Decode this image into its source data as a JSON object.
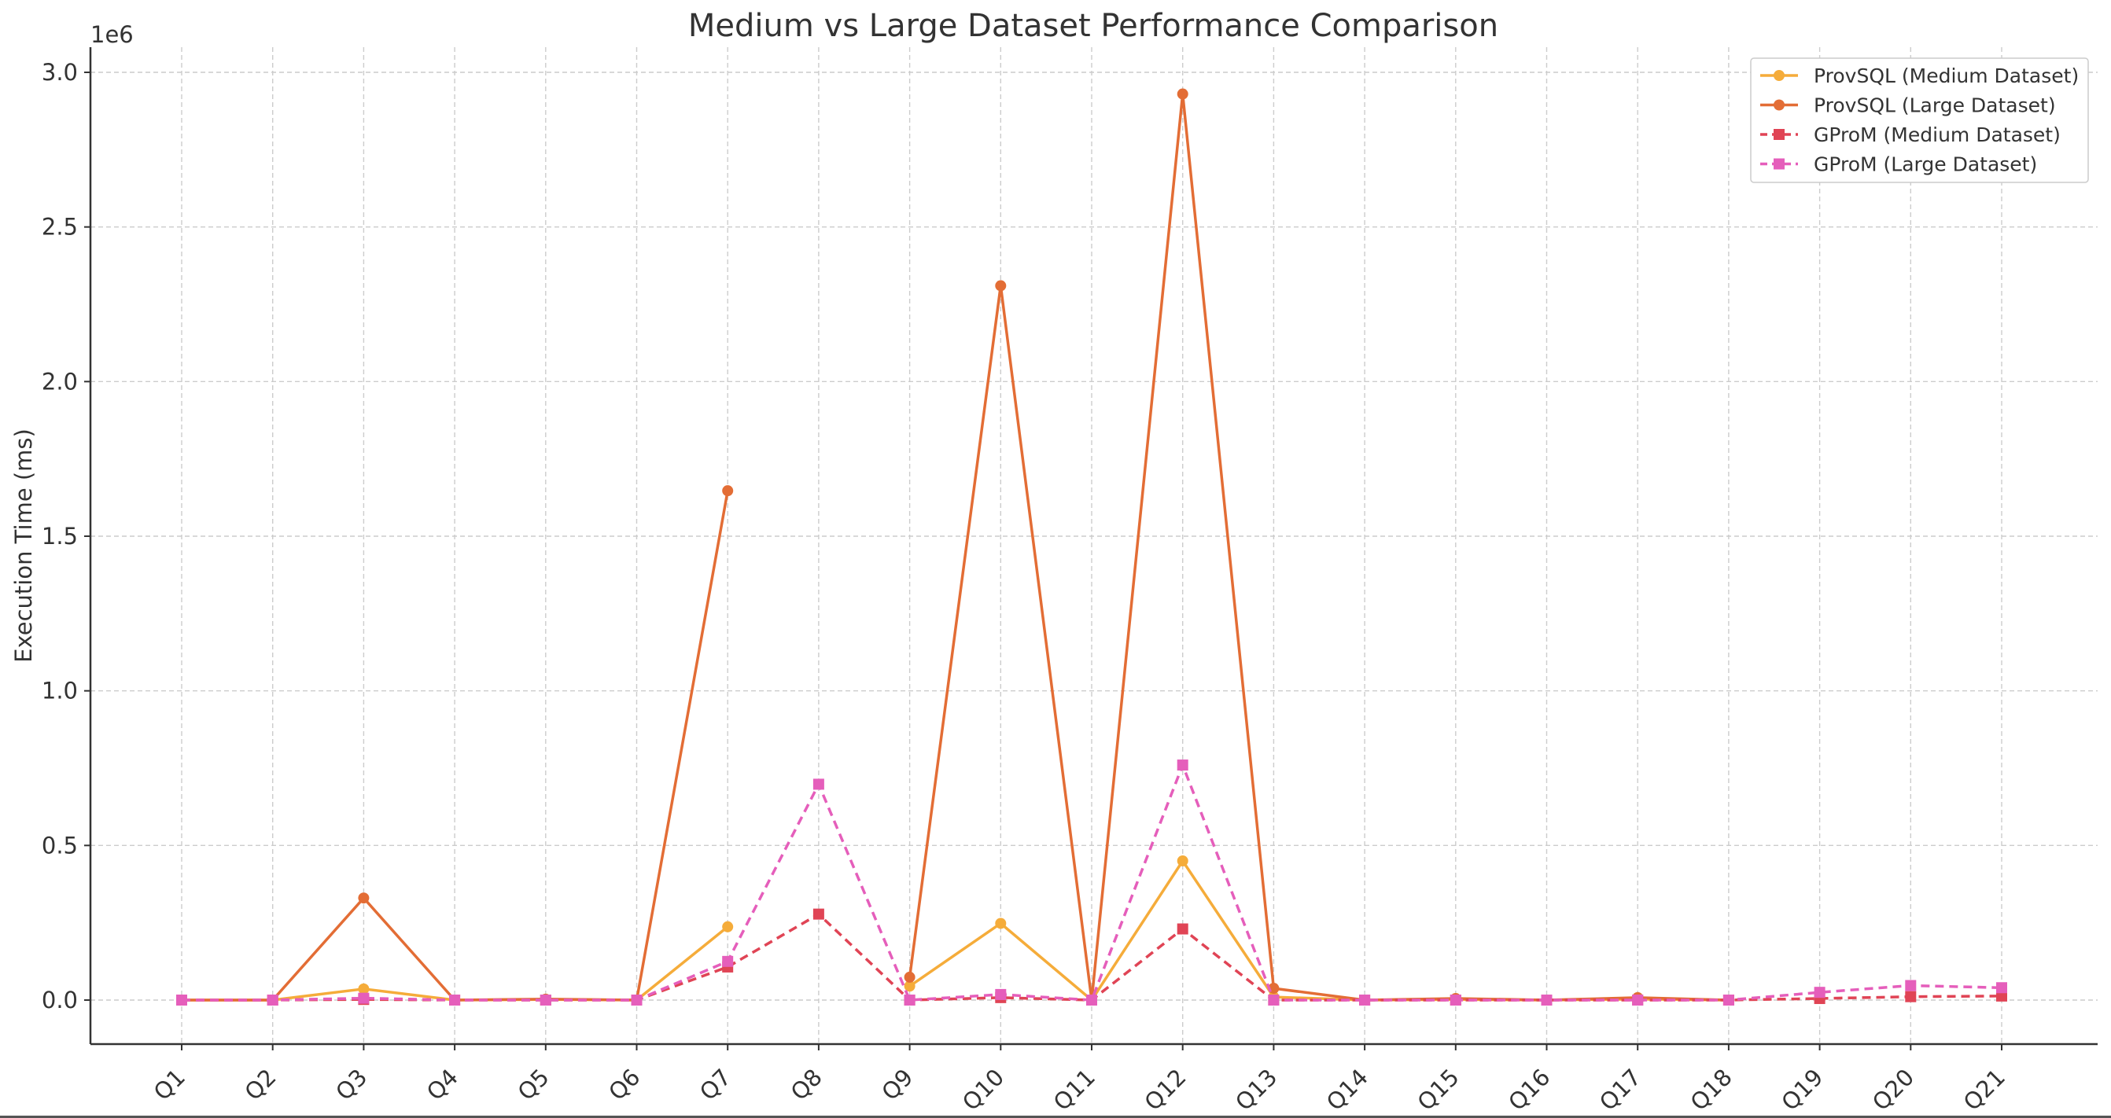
{
  "chart_data": {
    "type": "line",
    "title": "Medium vs Large Dataset Performance Comparison",
    "xlabel": "",
    "ylabel": "Execution Time (ms)",
    "y_offset_label": "1e6",
    "ylim": [
      -0.15,
      3.08
    ],
    "y_ticks": [
      0.0,
      0.5,
      1.0,
      1.5,
      2.0,
      2.5,
      3.0
    ],
    "y_tick_labels": [
      "0.0",
      "0.5",
      "1.0",
      "1.5",
      "2.0",
      "2.5",
      "3.0"
    ],
    "y_scale_note": "values in units of 1e6 ms",
    "grid": true,
    "legend_position": "top-right",
    "categories": [
      "Q1",
      "Q2",
      "Q3",
      "Q4",
      "Q5",
      "Q6",
      "Q7",
      "Q8",
      "Q9",
      "Q10",
      "Q11",
      "Q12",
      "Q13",
      "Q14",
      "Q15",
      "Q16",
      "Q17",
      "Q18",
      "Q19",
      "Q20",
      "Q21"
    ],
    "series": [
      {
        "name": "ProvSQL (Medium Dataset)",
        "color": "#f5ac3a",
        "line_style": "solid",
        "marker": "circle",
        "values": [
          0.0,
          0.0,
          0.036,
          0.0,
          0.002,
          0.0,
          0.237,
          null,
          0.045,
          0.248,
          0.0,
          0.45,
          0.01,
          0.0,
          0.002,
          0.0,
          0.003,
          0.0,
          null,
          null,
          null
        ]
      },
      {
        "name": "ProvSQL (Large Dataset)",
        "color": "#e36d35",
        "line_style": "solid",
        "marker": "circle",
        "values": [
          0.0,
          0.0,
          0.33,
          0.0,
          0.003,
          0.0,
          1.647,
          null,
          0.074,
          2.31,
          0.0,
          2.93,
          0.038,
          0.0,
          0.005,
          0.0,
          0.008,
          0.0,
          null,
          null,
          null
        ]
      },
      {
        "name": "GProM (Medium Dataset)",
        "color": "#e04455",
        "line_style": "dashed",
        "marker": "square",
        "values": [
          0.0,
          0.0,
          0.002,
          0.0,
          0.0,
          0.0,
          0.107,
          0.278,
          0.0,
          0.008,
          0.0,
          0.23,
          0.0,
          0.0,
          0.0,
          0.0,
          0.0,
          0.0,
          0.005,
          0.011,
          0.013
        ]
      },
      {
        "name": "GProM (Large Dataset)",
        "color": "#e55ebb",
        "line_style": "dashed",
        "marker": "square",
        "values": [
          0.0,
          0.0,
          0.006,
          0.0,
          0.0,
          0.0,
          0.125,
          0.698,
          0.0,
          0.018,
          0.0,
          0.76,
          0.0,
          0.0,
          0.0,
          0.0,
          0.0,
          0.0,
          0.025,
          0.047,
          0.04
        ]
      }
    ]
  }
}
